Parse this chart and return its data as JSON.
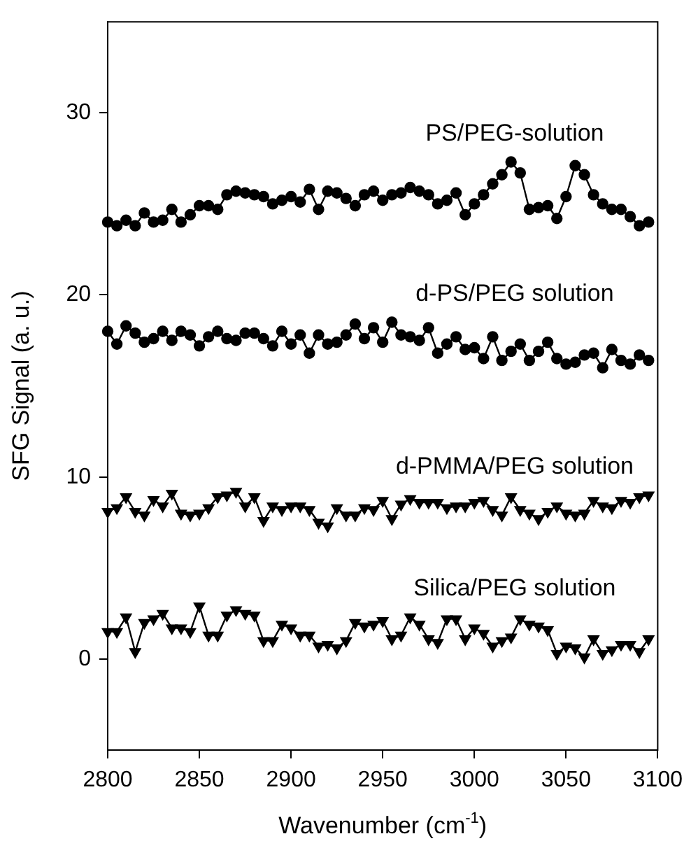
{
  "chart_data": {
    "type": "line",
    "xlabel": "Wavenumber (cm$^{-1}$)",
    "ylabel": "SFG Signal (a. u.)",
    "x": [
      2800,
      2805,
      2810,
      2815,
      2820,
      2825,
      2830,
      2835,
      2840,
      2845,
      2850,
      2855,
      2860,
      2865,
      2870,
      2875,
      2880,
      2885,
      2890,
      2895,
      2900,
      2905,
      2910,
      2915,
      2920,
      2925,
      2930,
      2935,
      2940,
      2945,
      2950,
      2955,
      2960,
      2965,
      2970,
      2975,
      2980,
      2985,
      2990,
      2995,
      3000,
      3005,
      3010,
      3015,
      3020,
      3025,
      3030,
      3035,
      3040,
      3045,
      3050,
      3055,
      3060,
      3065,
      3070,
      3075,
      3080,
      3085,
      3090,
      3095
    ],
    "xlim": [
      2800,
      3100
    ],
    "xticks": [
      2800,
      2850,
      2900,
      2950,
      3000,
      3050,
      3100
    ],
    "ylim": [
      -5,
      35
    ],
    "yticks": [
      0,
      10,
      20,
      30
    ],
    "grid": false,
    "legend": false,
    "line_style": "solid",
    "series": [
      {
        "name": "PS/PEG-solution",
        "color": "#000000",
        "marker": "circle",
        "values": [
          24.0,
          23.8,
          24.1,
          23.8,
          24.5,
          24.0,
          24.1,
          24.7,
          24.0,
          24.4,
          24.9,
          24.9,
          24.7,
          25.5,
          25.7,
          25.6,
          25.5,
          25.4,
          25.0,
          25.2,
          25.4,
          25.1,
          25.8,
          24.7,
          25.7,
          25.6,
          25.3,
          24.9,
          25.5,
          25.7,
          25.2,
          25.5,
          25.6,
          25.9,
          25.7,
          25.5,
          25.0,
          25.2,
          25.6,
          24.4,
          25.0,
          25.5,
          26.1,
          26.6,
          27.3,
          26.7,
          24.7,
          24.8,
          24.9,
          24.2,
          25.4,
          27.1,
          26.6,
          25.5,
          25.0,
          24.7,
          24.7,
          24.3,
          23.8,
          24.0
        ]
      },
      {
        "name": "d-PS/PEG solution",
        "color": "#000000",
        "marker": "circle",
        "values": [
          18.0,
          17.3,
          18.3,
          17.9,
          17.4,
          17.6,
          18.0,
          17.5,
          18.0,
          17.8,
          17.2,
          17.7,
          18.0,
          17.6,
          17.5,
          17.9,
          17.9,
          17.6,
          17.2,
          18.0,
          17.3,
          17.8,
          16.8,
          17.8,
          17.3,
          17.4,
          17.8,
          18.4,
          17.6,
          18.2,
          17.4,
          18.5,
          17.8,
          17.7,
          17.5,
          18.2,
          16.8,
          17.3,
          17.7,
          17.0,
          17.1,
          16.5,
          17.7,
          16.4,
          16.9,
          17.3,
          16.4,
          16.9,
          17.4,
          16.5,
          16.2,
          16.3,
          16.7,
          16.8,
          16.0,
          17.0,
          16.4,
          16.2,
          16.7,
          16.4
        ]
      },
      {
        "name": "d-PMMA/PEG solution",
        "color": "#000000",
        "marker": "triangle",
        "values": [
          8.1,
          8.3,
          8.9,
          8.1,
          7.9,
          8.75,
          8.4,
          9.1,
          8.0,
          7.9,
          8.0,
          8.3,
          8.9,
          9.0,
          9.2,
          8.4,
          8.9,
          7.6,
          8.4,
          8.2,
          8.4,
          8.4,
          8.2,
          7.5,
          7.3,
          8.3,
          7.9,
          7.9,
          8.3,
          8.2,
          8.7,
          7.7,
          8.5,
          8.8,
          8.6,
          8.6,
          8.6,
          8.3,
          8.4,
          8.4,
          8.6,
          8.7,
          8.2,
          7.9,
          8.9,
          8.2,
          8.0,
          7.7,
          8.1,
          8.4,
          8.0,
          7.9,
          8.0,
          8.7,
          8.4,
          8.3,
          8.7,
          8.6,
          8.9,
          9.0
        ]
      },
      {
        "name": "Silica/PEG solution",
        "color": "#000000",
        "marker": "triangle",
        "values": [
          1.5,
          1.5,
          2.3,
          0.4,
          2.0,
          2.2,
          2.5,
          1.7,
          1.7,
          1.5,
          2.9,
          1.3,
          1.3,
          2.4,
          2.7,
          2.5,
          2.4,
          1.0,
          1.0,
          1.9,
          1.7,
          1.3,
          1.3,
          0.7,
          0.8,
          0.6,
          1.0,
          2.0,
          1.8,
          1.9,
          2.1,
          1.1,
          1.3,
          2.3,
          1.9,
          1.1,
          0.9,
          2.2,
          2.2,
          1.1,
          1.7,
          1.4,
          0.7,
          1.0,
          1.2,
          2.2,
          1.9,
          1.8,
          1.6,
          0.3,
          0.7,
          0.6,
          0.1,
          1.1,
          0.3,
          0.5,
          0.8,
          0.8,
          0.4,
          1.1
        ]
      }
    ]
  }
}
